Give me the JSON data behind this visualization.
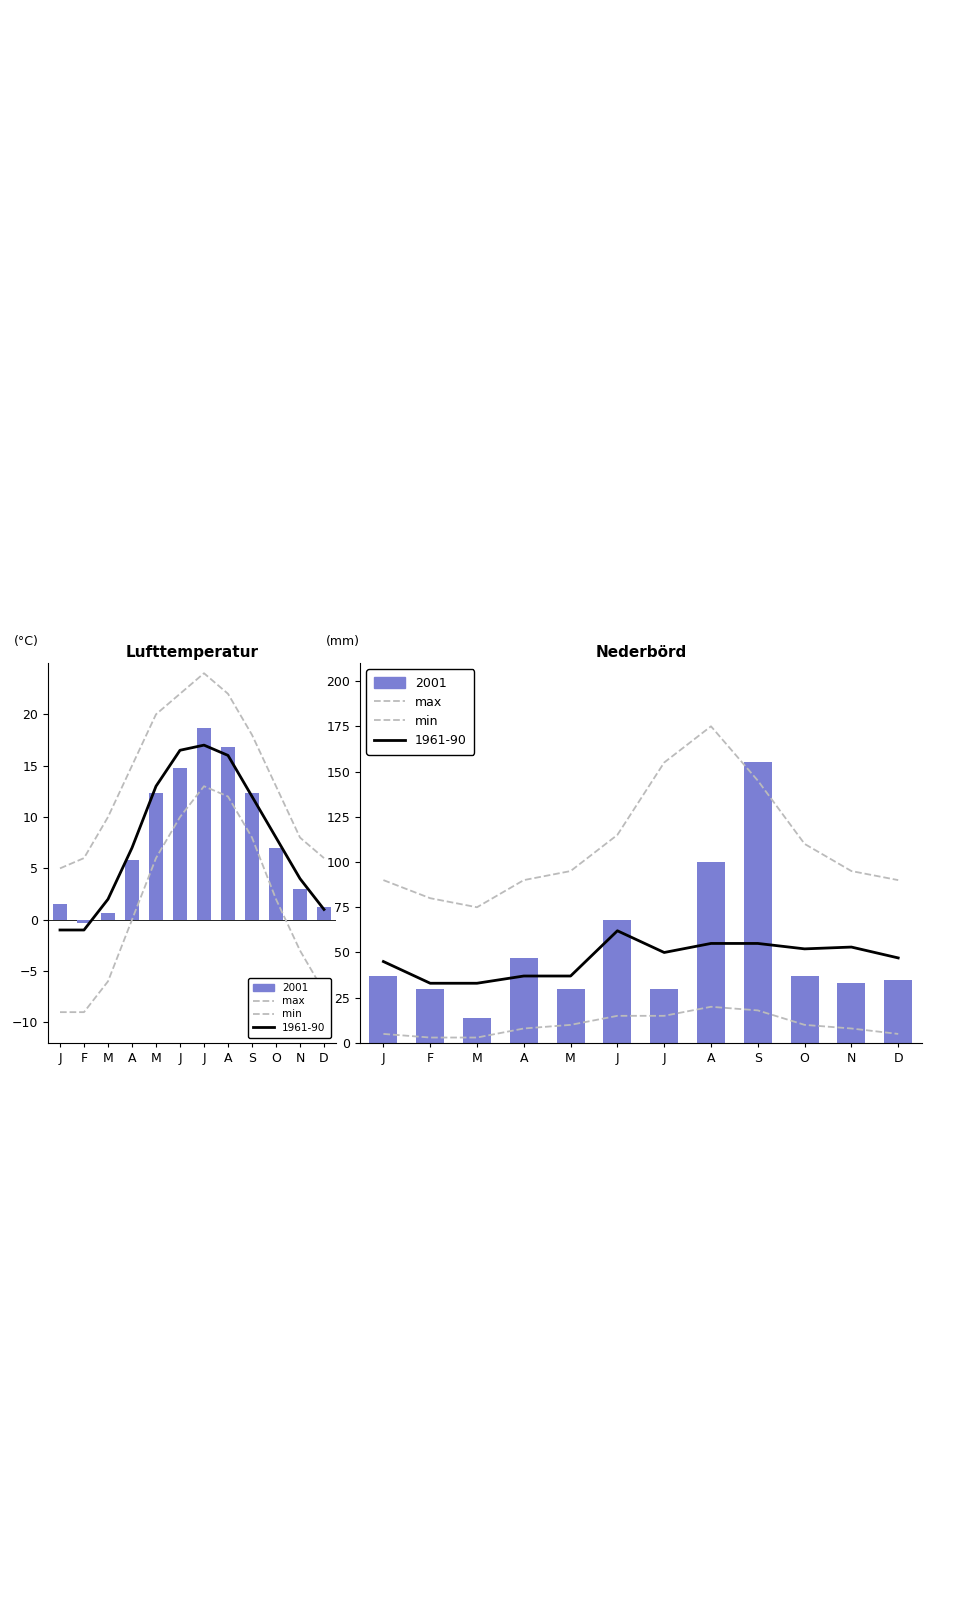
{
  "months": [
    "J",
    "F",
    "M",
    "A",
    "M",
    "J",
    "J",
    "A",
    "S",
    "O",
    "N",
    "D"
  ],
  "precip_2001": [
    37,
    30,
    14,
    47,
    30,
    68,
    30,
    100,
    155,
    37,
    33,
    35
  ],
  "precip_max": [
    90,
    80,
    75,
    90,
    95,
    115,
    155,
    175,
    145,
    110,
    95,
    90
  ],
  "precip_min": [
    5,
    3,
    3,
    8,
    10,
    15,
    15,
    20,
    18,
    10,
    8,
    5
  ],
  "precip_mean": [
    45,
    33,
    33,
    37,
    37,
    62,
    50,
    55,
    55,
    52,
    53,
    47
  ],
  "precip_title": "Nederbörd",
  "precip_ylabel": "(mm)",
  "precip_ylim": [
    0,
    210
  ],
  "precip_yticks": [
    0,
    25,
    50,
    75,
    100,
    125,
    150,
    175,
    200
  ],
  "temp_2001": [
    1.5,
    -0.3,
    0.7,
    5.8,
    12.3,
    14.8,
    18.7,
    16.8,
    12.3,
    7.0,
    3.0,
    1.2
  ],
  "temp_max": [
    5,
    6,
    10,
    15,
    20,
    22,
    24,
    22,
    18,
    13,
    8,
    6
  ],
  "temp_min": [
    -9,
    -9,
    -6,
    0,
    6,
    10,
    13,
    12,
    8,
    2,
    -3,
    -7
  ],
  "temp_mean": [
    -1,
    -1,
    2,
    7,
    13,
    16.5,
    17,
    16,
    12,
    8,
    4,
    1
  ],
  "temp_title": "Lufttemperatur",
  "temp_ylabel": "(°C)",
  "temp_ylim": [
    -12,
    25
  ],
  "temp_yticks": [
    -10,
    -5,
    0,
    5,
    10,
    15,
    20
  ],
  "bar_color": "#7B7FD4",
  "line_color_mean": "#000000",
  "line_color_max": "#bbbbbb",
  "line_color_min": "#bbbbbb",
  "legend_2001": "2001",
  "legend_max": "max",
  "legend_min": "min",
  "legend_mean": "1961-90",
  "background_color": "#ffffff"
}
